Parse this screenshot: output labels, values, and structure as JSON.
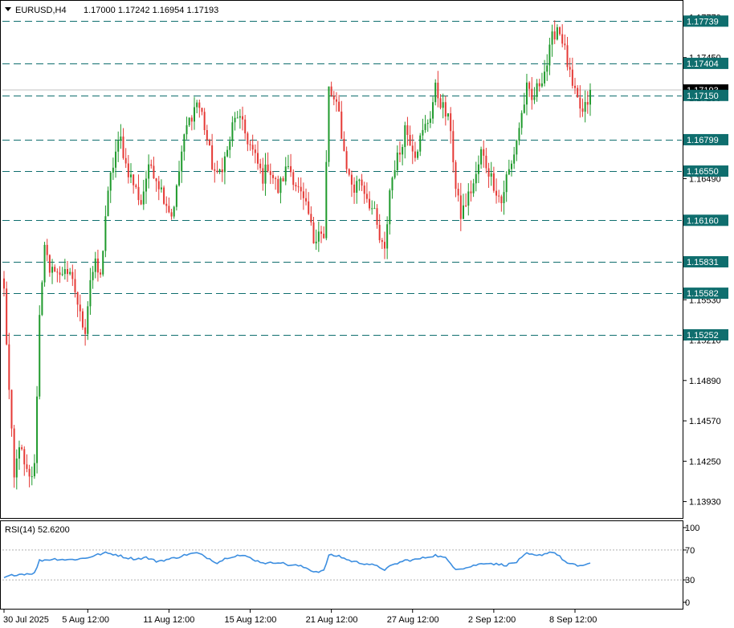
{
  "header": {
    "symbol": "EURUSD,H4",
    "ohlc": "1.17000 1.17242 1.16954 1.17193"
  },
  "rsi_panel": {
    "title": "RSI(14) 52.6200",
    "levels": [
      100,
      70,
      30,
      0
    ],
    "level_labels": [
      "100",
      "70",
      "30",
      "0"
    ]
  },
  "colors": {
    "bull": "#26a69a",
    "bull_body": "#1f9a2c",
    "bear": "#e53935",
    "level_line": "#0f6e6e",
    "rsi_line": "#3c8ee0",
    "badge_bg": "#0f6e6e",
    "current_bg": "#000000"
  },
  "chart_data": [
    {
      "type": "candlestick",
      "symbol": "EURUSD",
      "timeframe": "H4",
      "ylim": [
        1.138,
        1.179
      ],
      "y_ticks": [
        "1.17770",
        "1.17450",
        "1.17130",
        "1.16810",
        "1.16490",
        "1.16170",
        "1.15850",
        "1.15530",
        "1.15210",
        "1.14890",
        "1.14570",
        "1.14250",
        "1.13930"
      ],
      "y_tick_values": [
        1.1777,
        1.1745,
        1.1713,
        1.1681,
        1.1649,
        1.1617,
        1.1585,
        1.1553,
        1.1521,
        1.1489,
        1.1457,
        1.1425,
        1.1393
      ],
      "x_ticks": [
        "30 Jul 2025",
        "5 Aug 12:00",
        "11 Aug 12:00",
        "15 Aug 12:00",
        "21 Aug 12:00",
        "27 Aug 12:00",
        "2 Sep 12:00",
        "8 Sep 12:00"
      ],
      "x_tick_index": [
        0,
        33,
        65,
        97,
        129,
        161,
        193,
        225
      ],
      "levels": [
        {
          "value": 1.17739,
          "label": "1.17739"
        },
        {
          "value": 1.17404,
          "label": "1.17404"
        },
        {
          "value": 1.1715,
          "label": "1.17150"
        },
        {
          "value": 1.16799,
          "label": "1.16799"
        },
        {
          "value": 1.1655,
          "label": "1.16550"
        },
        {
          "value": 1.1616,
          "label": "1.16160"
        },
        {
          "value": 1.15831,
          "label": "1.15831"
        },
        {
          "value": 1.15582,
          "label": "1.15582"
        },
        {
          "value": 1.15252,
          "label": "1.15252"
        }
      ],
      "current_price": {
        "value": 1.17193,
        "label": "1.17193"
      },
      "anchors": [
        [
          0,
          1.156
        ],
        [
          2,
          1.148
        ],
        [
          4,
          1.141
        ],
        [
          6,
          1.144
        ],
        [
          8,
          1.142
        ],
        [
          10,
          1.141
        ],
        [
          12,
          1.142
        ],
        [
          14,
          1.154
        ],
        [
          16,
          1.16
        ],
        [
          18,
          1.157
        ],
        [
          20,
          1.158
        ],
        [
          22,
          1.157
        ],
        [
          24,
          1.158
        ],
        [
          26,
          1.157
        ],
        [
          28,
          1.156
        ],
        [
          30,
          1.154
        ],
        [
          32,
          1.153
        ],
        [
          34,
          1.157
        ],
        [
          36,
          1.158
        ],
        [
          38,
          1.157
        ],
        [
          40,
          1.162
        ],
        [
          42,
          1.165
        ],
        [
          44,
          1.167
        ],
        [
          46,
          1.168
        ],
        [
          48,
          1.166
        ],
        [
          50,
          1.165
        ],
        [
          52,
          1.164
        ],
        [
          54,
          1.163
        ],
        [
          56,
          1.165
        ],
        [
          58,
          1.166
        ],
        [
          60,
          1.165
        ],
        [
          62,
          1.164
        ],
        [
          64,
          1.163
        ],
        [
          66,
          1.162
        ],
        [
          68,
          1.164
        ],
        [
          70,
          1.167
        ],
        [
          72,
          1.169
        ],
        [
          74,
          1.17
        ],
        [
          76,
          1.171
        ],
        [
          78,
          1.17
        ],
        [
          80,
          1.168
        ],
        [
          82,
          1.166
        ],
        [
          84,
          1.165
        ],
        [
          86,
          1.166
        ],
        [
          88,
          1.167
        ],
        [
          90,
          1.169
        ],
        [
          92,
          1.17
        ],
        [
          94,
          1.169
        ],
        [
          96,
          1.168
        ],
        [
          98,
          1.167
        ],
        [
          100,
          1.166
        ],
        [
          102,
          1.165
        ],
        [
          104,
          1.166
        ],
        [
          106,
          1.165
        ],
        [
          108,
          1.164
        ],
        [
          110,
          1.165
        ],
        [
          112,
          1.166
        ],
        [
          114,
          1.165
        ],
        [
          116,
          1.164
        ],
        [
          118,
          1.163
        ],
        [
          120,
          1.162
        ],
        [
          122,
          1.16
        ],
        [
          124,
          1.161
        ],
        [
          126,
          1.16
        ],
        [
          128,
          1.172
        ],
        [
          130,
          1.171
        ],
        [
          132,
          1.17
        ],
        [
          134,
          1.167
        ],
        [
          136,
          1.165
        ],
        [
          138,
          1.164
        ],
        [
          140,
          1.165
        ],
        [
          142,
          1.164
        ],
        [
          144,
          1.163
        ],
        [
          146,
          1.162
        ],
        [
          148,
          1.16
        ],
        [
          150,
          1.159
        ],
        [
          152,
          1.164
        ],
        [
          154,
          1.166
        ],
        [
          156,
          1.167
        ],
        [
          158,
          1.169
        ],
        [
          160,
          1.168
        ],
        [
          162,
          1.167
        ],
        [
          164,
          1.168
        ],
        [
          166,
          1.169
        ],
        [
          168,
          1.17
        ],
        [
          170,
          1.172
        ],
        [
          172,
          1.171
        ],
        [
          174,
          1.17
        ],
        [
          176,
          1.169
        ],
        [
          178,
          1.164
        ],
        [
          180,
          1.162
        ],
        [
          182,
          1.163
        ],
        [
          184,
          1.164
        ],
        [
          186,
          1.165
        ],
        [
          188,
          1.167
        ],
        [
          190,
          1.166
        ],
        [
          192,
          1.165
        ],
        [
          194,
          1.164
        ],
        [
          196,
          1.163
        ],
        [
          198,
          1.165
        ],
        [
          200,
          1.166
        ],
        [
          202,
          1.168
        ],
        [
          204,
          1.17
        ],
        [
          206,
          1.172
        ],
        [
          208,
          1.171
        ],
        [
          210,
          1.172
        ],
        [
          212,
          1.173
        ],
        [
          214,
          1.174
        ],
        [
          216,
          1.176
        ],
        [
          218,
          1.177
        ],
        [
          220,
          1.176
        ],
        [
          222,
          1.174
        ],
        [
          224,
          1.172
        ],
        [
          226,
          1.171
        ],
        [
          228,
          1.17
        ],
        [
          230,
          1.171
        ],
        [
          231,
          1.1719
        ]
      ],
      "rsi_ylim": [
        0,
        100
      ],
      "rsi": [
        [
          0,
          33
        ],
        [
          4,
          37
        ],
        [
          8,
          38
        ],
        [
          12,
          39
        ],
        [
          14,
          56
        ],
        [
          20,
          58
        ],
        [
          26,
          57
        ],
        [
          32,
          59
        ],
        [
          36,
          63
        ],
        [
          40,
          66
        ],
        [
          44,
          64
        ],
        [
          48,
          60
        ],
        [
          52,
          58
        ],
        [
          56,
          60
        ],
        [
          60,
          55
        ],
        [
          64,
          57
        ],
        [
          68,
          60
        ],
        [
          72,
          64
        ],
        [
          76,
          66
        ],
        [
          80,
          60
        ],
        [
          84,
          53
        ],
        [
          88,
          60
        ],
        [
          92,
          63
        ],
        [
          96,
          61
        ],
        [
          100,
          55
        ],
        [
          104,
          52
        ],
        [
          108,
          54
        ],
        [
          112,
          50
        ],
        [
          116,
          49
        ],
        [
          120,
          45
        ],
        [
          122,
          41
        ],
        [
          126,
          42
        ],
        [
          128,
          63
        ],
        [
          132,
          62
        ],
        [
          136,
          56
        ],
        [
          140,
          53
        ],
        [
          144,
          51
        ],
        [
          148,
          47
        ],
        [
          150,
          44
        ],
        [
          154,
          51
        ],
        [
          158,
          56
        ],
        [
          162,
          57
        ],
        [
          166,
          60
        ],
        [
          170,
          63
        ],
        [
          174,
          59
        ],
        [
          178,
          45
        ],
        [
          182,
          46
        ],
        [
          186,
          50
        ],
        [
          190,
          53
        ],
        [
          194,
          51
        ],
        [
          198,
          50
        ],
        [
          202,
          54
        ],
        [
          206,
          65
        ],
        [
          210,
          62
        ],
        [
          214,
          66
        ],
        [
          216,
          68
        ],
        [
          218,
          64
        ],
        [
          222,
          52
        ],
        [
          226,
          49
        ],
        [
          229,
          50
        ],
        [
          231,
          52.62
        ]
      ]
    }
  ]
}
